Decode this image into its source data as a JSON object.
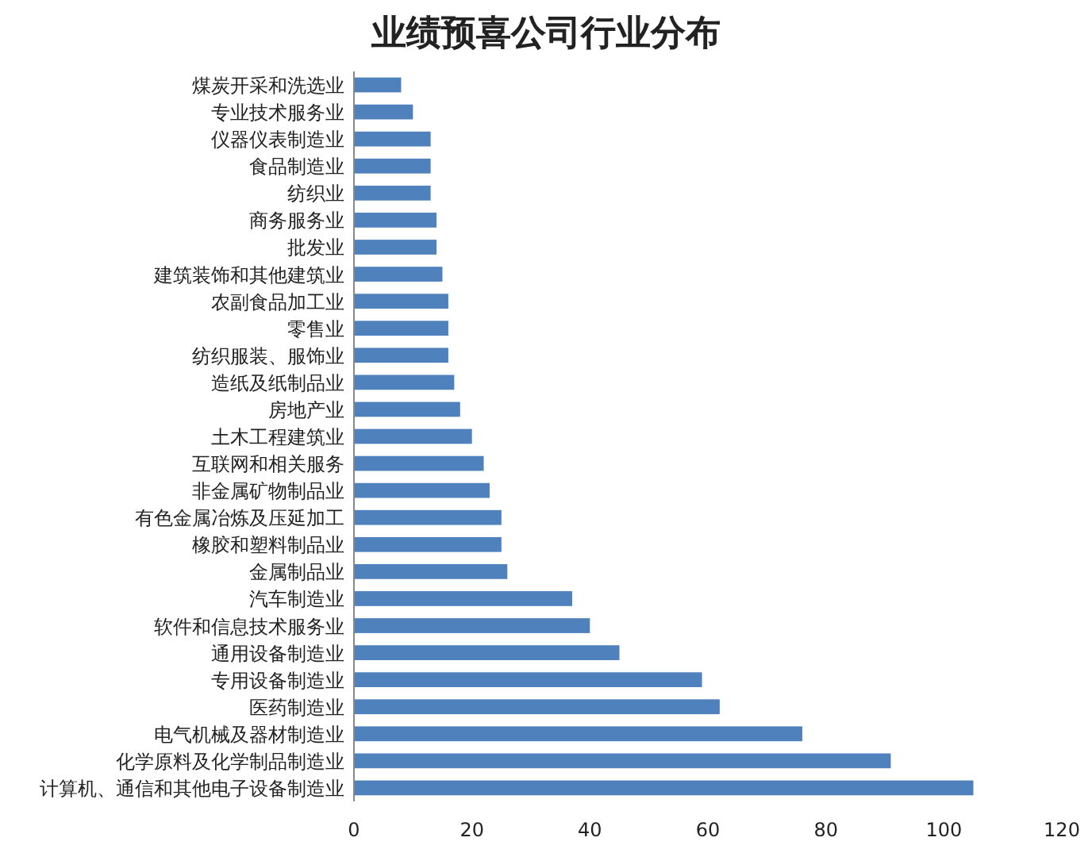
{
  "chart_data": {
    "type": "bar",
    "orientation": "horizontal",
    "title": "业绩预喜公司行业分布",
    "categories": [
      "煤炭开采和洗选业",
      "专业技术服务业",
      "仪器仪表制造业",
      "食品制造业",
      "纺织业",
      "商务服务业",
      "批发业",
      "建筑装饰和其他建筑业",
      "农副食品加工业",
      "零售业",
      "纺织服装、服饰业",
      "造纸及纸制品业",
      "房地产业",
      "土木工程建筑业",
      "互联网和相关服务",
      "非金属矿物制品业",
      "有色金属冶炼及压延加工",
      "橡胶和塑料制品业",
      "金属制品业",
      "汽车制造业",
      "软件和信息技术服务业",
      "通用设备制造业",
      "专用设备制造业",
      "医药制造业",
      "电气机械及器材制造业",
      "化学原料及化学制品制造业",
      "计算机、通信和其他电子设备制造业"
    ],
    "values": [
      8,
      10,
      13,
      13,
      13,
      14,
      14,
      15,
      16,
      16,
      16,
      17,
      18,
      20,
      22,
      23,
      25,
      25,
      26,
      37,
      40,
      45,
      59,
      62,
      76,
      91,
      105
    ],
    "color": "#4f81bd",
    "xlim": [
      0,
      120
    ],
    "xticks": [
      0,
      20,
      40,
      60,
      80,
      100,
      120
    ],
    "grid": false
  }
}
